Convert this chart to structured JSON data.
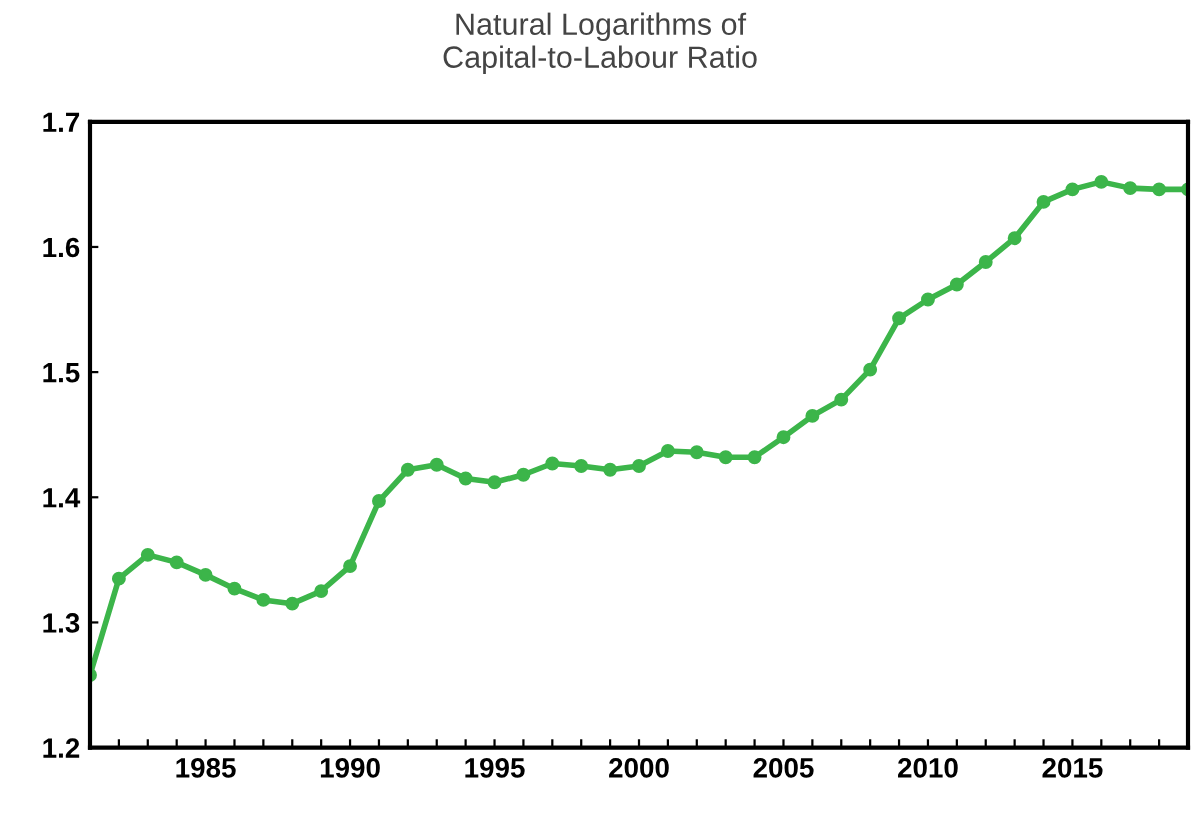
{
  "chart_data": {
    "type": "line",
    "title": "Natural Logarithms of\nCapital-to-Labour Ratio",
    "x": [
      1981,
      1982,
      1983,
      1984,
      1985,
      1986,
      1987,
      1988,
      1989,
      1990,
      1991,
      1992,
      1993,
      1994,
      1995,
      1996,
      1997,
      1998,
      1999,
      2000,
      2001,
      2002,
      2003,
      2004,
      2005,
      2006,
      2007,
      2008,
      2009,
      2010,
      2011,
      2012,
      2013,
      2014,
      2015,
      2016,
      2017,
      2018,
      2019
    ],
    "series": [
      {
        "color": "#3cb54a",
        "values": [
          1.258,
          1.335,
          1.354,
          1.348,
          1.338,
          1.327,
          1.318,
          1.315,
          1.325,
          1.345,
          1.397,
          1.422,
          1.426,
          1.415,
          1.412,
          1.418,
          1.427,
          1.425,
          1.422,
          1.425,
          1.437,
          1.436,
          1.432,
          1.432,
          1.448,
          1.465,
          1.478,
          1.502,
          1.543,
          1.558,
          1.57,
          1.588,
          1.607,
          1.636,
          1.646,
          1.652,
          1.647,
          1.646,
          1.646
        ]
      }
    ],
    "xlim": [
      1981,
      2019
    ],
    "xticks": [
      {
        "value": 1981,
        "label": null
      },
      {
        "value": 1982,
        "label": null
      },
      {
        "value": 1983,
        "label": null
      },
      {
        "value": 1984,
        "label": null
      },
      1985,
      {
        "value": 1986,
        "label": null
      },
      {
        "value": 1987,
        "label": null
      },
      {
        "value": 1988,
        "label": null
      },
      {
        "value": 1989,
        "label": null
      },
      1990,
      {
        "value": 1991,
        "label": null
      },
      {
        "value": 1992,
        "label": null
      },
      {
        "value": 1993,
        "label": null
      },
      {
        "value": 1994,
        "label": null
      },
      1995,
      {
        "value": 1996,
        "label": null
      },
      {
        "value": 1997,
        "label": null
      },
      {
        "value": 1998,
        "label": null
      },
      {
        "value": 1999,
        "label": null
      },
      2000,
      {
        "value": 2001,
        "label": null
      },
      {
        "value": 2002,
        "label": null
      },
      {
        "value": 2003,
        "label": null
      },
      {
        "value": 2004,
        "label": null
      },
      2005,
      {
        "value": 2006,
        "label": null
      },
      {
        "value": 2007,
        "label": null
      },
      {
        "value": 2008,
        "label": null
      },
      {
        "value": 2009,
        "label": null
      },
      2010,
      {
        "value": 2011,
        "label": null
      },
      {
        "value": 2012,
        "label": null
      },
      {
        "value": 2013,
        "label": null
      },
      {
        "value": 2014,
        "label": null
      },
      2015,
      {
        "value": 2016,
        "label": null
      },
      {
        "value": 2017,
        "label": null
      },
      {
        "value": 2018,
        "label": null
      },
      {
        "value": 2019,
        "label": null
      }
    ],
    "ylim": [
      1.2,
      1.7
    ],
    "yticks": [
      1.2,
      1.3,
      1.4,
      1.5,
      1.6,
      1.7
    ],
    "grid": false,
    "legend": false,
    "marker": "circle",
    "line_style": "solid"
  }
}
